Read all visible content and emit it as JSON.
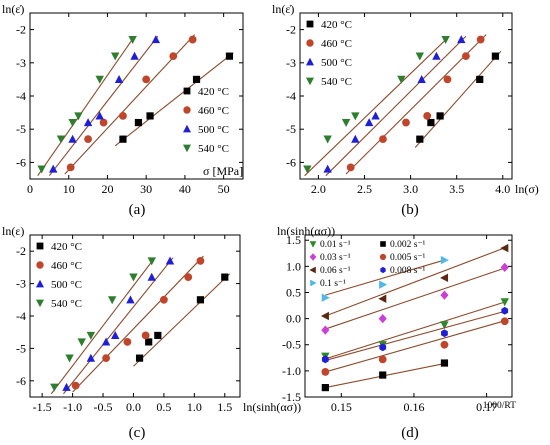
{
  "colors": {
    "c420": "#000000",
    "c460": "#c0462b",
    "c500": "#1f1fd6",
    "c540": "#2f7d2f",
    "fit": "#8b4a2b",
    "s001": "#2a8a2a",
    "s003": "#cc3fd6",
    "s006": "#5a2a10",
    "s01": "#4fb8e8",
    "s0002": "#000000",
    "s0005": "#c0462b",
    "s0008": "#1f1fd6"
  },
  "chart_data": [
    {
      "id": "a",
      "type": "scatter",
      "panel_label": "(a)",
      "xlabel": "σ [MPa]",
      "ylabel": "ln(ε̇)",
      "xlim": [
        0,
        55
      ],
      "ylim": [
        -6.5,
        -1.5
      ],
      "xticks": [
        "0",
        "10",
        "20",
        "30",
        "40",
        "50"
      ],
      "xtick_values": [
        0,
        10,
        20,
        30,
        40,
        50
      ],
      "yticks": [
        "-2",
        "-3",
        "-4",
        "-5",
        "-6"
      ],
      "ytick_values": [
        -2,
        -3,
        -4,
        -5,
        -6
      ],
      "legend_position": "bottom-right",
      "series": [
        {
          "name": "420 °C",
          "marker": "square",
          "color": "c420",
          "x": [
            24,
            28,
            31,
            43,
            51.5
          ],
          "y": [
            -5.3,
            -4.8,
            -4.6,
            -3.5,
            -2.8
          ],
          "fit": [
            [
              22,
              -5.5
            ],
            [
              52.5,
              -2.7
            ]
          ]
        },
        {
          "name": "460 °C",
          "marker": "circle",
          "color": "c460",
          "x": [
            10.5,
            15,
            19,
            24,
            30,
            37,
            42
          ],
          "y": [
            -6.15,
            -5.3,
            -4.8,
            -4.6,
            -3.5,
            -2.8,
            -2.3
          ],
          "fit": [
            [
              9,
              -6.35
            ],
            [
              42.5,
              -2.15
            ]
          ]
        },
        {
          "name": "500 °C",
          "marker": "triangle-up",
          "color": "c500",
          "x": [
            6,
            11,
            15,
            18,
            23,
            27,
            32.5
          ],
          "y": [
            -6.2,
            -5.3,
            -4.8,
            -4.6,
            -3.5,
            -2.8,
            -2.3
          ],
          "fit": [
            [
              5,
              -6.4
            ],
            [
              33,
              -2.2
            ]
          ]
        },
        {
          "name": "540 °C",
          "marker": "triangle-down",
          "color": "c540",
          "x": [
            3,
            8,
            11,
            12.5,
            18,
            22,
            26.5
          ],
          "y": [
            -6.2,
            -5.3,
            -4.8,
            -4.6,
            -3.5,
            -2.8,
            -2.3
          ],
          "fit": [
            [
              2,
              -6.4
            ],
            [
              27,
              -2.2
            ]
          ]
        }
      ]
    },
    {
      "id": "b",
      "type": "scatter",
      "panel_label": "(b)",
      "xlabel": "ln(σ)",
      "ylabel": "ln(ε̇)",
      "xlim": [
        1.8,
        4.1
      ],
      "ylim": [
        -6.5,
        -1.5
      ],
      "xticks": [
        "2.0",
        "2.5",
        "3.0",
        "3.5",
        "4.0"
      ],
      "xtick_values": [
        2.0,
        2.5,
        3.0,
        3.5,
        4.0
      ],
      "yticks": [
        "-2",
        "-3",
        "-4",
        "-5",
        "-6"
      ],
      "ytick_values": [
        -2,
        -3,
        -4,
        -5,
        -6
      ],
      "legend_position": "top-left",
      "series": [
        {
          "name": "420 °C",
          "marker": "square",
          "color": "c420",
          "x": [
            3.1,
            3.22,
            3.32,
            3.75,
            3.92
          ],
          "y": [
            -5.3,
            -4.8,
            -4.6,
            -3.5,
            -2.8
          ],
          "fit": [
            [
              3.05,
              -5.55
            ],
            [
              3.98,
              -2.65
            ]
          ]
        },
        {
          "name": "460 °C",
          "marker": "circle",
          "color": "c460",
          "x": [
            2.35,
            2.7,
            2.95,
            3.18,
            3.4,
            3.6,
            3.76
          ],
          "y": [
            -6.15,
            -5.3,
            -4.8,
            -4.6,
            -3.5,
            -2.8,
            -2.3
          ],
          "fit": [
            [
              2.3,
              -6.35
            ],
            [
              3.82,
              -2.15
            ]
          ]
        },
        {
          "name": "500 °C",
          "marker": "triangle-up",
          "color": "c500",
          "x": [
            2.1,
            2.4,
            2.55,
            2.62,
            3.12,
            3.28,
            3.55
          ],
          "y": [
            -6.2,
            -5.3,
            -4.8,
            -4.6,
            -3.5,
            -2.8,
            -2.3
          ],
          "fit": [
            [
              2.08,
              -6.4
            ],
            [
              3.6,
              -2.2
            ]
          ]
        },
        {
          "name": "540 °C",
          "marker": "triangle-down",
          "color": "c540",
          "x": [
            1.88,
            2.1,
            2.3,
            2.4,
            2.9,
            3.1,
            3.38
          ],
          "y": [
            -6.2,
            -5.3,
            -4.8,
            -4.6,
            -3.5,
            -2.8,
            -2.3
          ],
          "fit": [
            [
              1.85,
              -6.4
            ],
            [
              3.42,
              -2.2
            ]
          ]
        }
      ]
    },
    {
      "id": "c",
      "type": "scatter",
      "panel_label": "(c)",
      "xlabel": "ln(sinh(ασ))",
      "ylabel": "ln(ε)",
      "xlim": [
        -1.7,
        1.75
      ],
      "ylim": [
        -6.5,
        -1.5
      ],
      "xticks": [
        "-1.5",
        "-1.0",
        "-0.5",
        "0.0",
        "0.5",
        "1.0",
        "1.5"
      ],
      "xtick_values": [
        -1.5,
        -1.0,
        -0.5,
        0.0,
        0.5,
        1.0,
        1.5
      ],
      "yticks": [
        "-2",
        "-3",
        "-4",
        "-5",
        "-6"
      ],
      "ytick_values": [
        -2,
        -3,
        -4,
        -5,
        -6
      ],
      "legend_position": "top-left",
      "series": [
        {
          "name": "420 °C",
          "marker": "square",
          "color": "c420",
          "x": [
            0.1,
            0.25,
            0.4,
            1.1,
            1.5
          ],
          "y": [
            -5.3,
            -4.8,
            -4.6,
            -3.5,
            -2.8
          ],
          "fit": [
            [
              0.0,
              -5.55
            ],
            [
              1.58,
              -2.7
            ]
          ]
        },
        {
          "name": "460 °C",
          "marker": "circle",
          "color": "c460",
          "x": [
            -0.95,
            -0.45,
            -0.1,
            0.2,
            0.5,
            0.9,
            1.1
          ],
          "y": [
            -6.15,
            -5.3,
            -4.8,
            -4.6,
            -3.5,
            -2.8,
            -2.3
          ],
          "fit": [
            [
              -1.0,
              -6.35
            ],
            [
              1.15,
              -2.15
            ]
          ]
        },
        {
          "name": "500 °C",
          "marker": "triangle-up",
          "color": "c500",
          "x": [
            -1.1,
            -0.7,
            -0.45,
            -0.3,
            -0.05,
            0.3,
            0.6
          ],
          "y": [
            -6.2,
            -5.3,
            -4.8,
            -4.6,
            -3.5,
            -2.8,
            -2.3
          ],
          "fit": [
            [
              -1.15,
              -6.4
            ],
            [
              0.65,
              -2.2
            ]
          ]
        },
        {
          "name": "540 °C",
          "marker": "triangle-down",
          "color": "c540",
          "x": [
            -1.3,
            -1.05,
            -0.85,
            -0.7,
            -0.35,
            0.0,
            0.3
          ],
          "y": [
            -6.2,
            -5.3,
            -4.8,
            -4.6,
            -3.5,
            -2.8,
            -2.3
          ],
          "fit": [
            [
              -1.35,
              -6.4
            ],
            [
              0.35,
              -2.2
            ]
          ]
        }
      ]
    },
    {
      "id": "d",
      "type": "scatter",
      "panel_label": "(d)",
      "xlabel": "1000/RT",
      "ylabel": "ln(sinh(ασ))",
      "xlim": [
        0.145,
        0.1735
      ],
      "ylim": [
        -1.5,
        1.6
      ],
      "xticks": [
        "0.15",
        "0.16",
        "0.17"
      ],
      "xtick_values": [
        0.15,
        0.16,
        0.17
      ],
      "yticks": [
        "1.5",
        "1.0",
        "0.5",
        "0.0",
        "-0.5",
        "-1.0",
        "-1.5"
      ],
      "ytick_values": [
        1.5,
        1.0,
        0.5,
        0.0,
        -0.5,
        -1.0,
        -1.5
      ],
      "legend_position": "top-left",
      "x_points": [
        0.1478,
        0.1557,
        0.1642,
        0.1725
      ],
      "series": [
        {
          "name": "0.01 s⁻¹",
          "marker": "triangle-down",
          "color": "s001",
          "y": [
            -0.72,
            -0.5,
            -0.12,
            0.32
          ],
          "fit": [
            [
              0.1478,
              -0.77
            ],
            [
              0.1728,
              0.33
            ]
          ]
        },
        {
          "name": "0.03 s⁻¹",
          "marker": "diamond",
          "color": "s003",
          "y": [
            -0.22,
            0.0,
            0.45,
            0.98
          ],
          "fit": [
            [
              0.1478,
              -0.2
            ],
            [
              0.1728,
              0.98
            ]
          ]
        },
        {
          "name": "0.06 s⁻¹",
          "marker": "triangle-left",
          "color": "s006",
          "y": [
            0.05,
            0.38,
            0.78,
            1.35
          ],
          "fit": [
            [
              0.1478,
              0.05
            ],
            [
              0.1728,
              1.37
            ]
          ]
        },
        {
          "name": "0.1 s⁻¹",
          "marker": "triangle-right",
          "color": "s01",
          "y": [
            0.4,
            0.65,
            1.12,
            null
          ],
          "fit": [
            [
              0.1478,
              0.45
            ],
            [
              0.1642,
              1.12
            ]
          ]
        },
        {
          "name": "0.002 s⁻¹",
          "marker": "square",
          "color": "s0002",
          "y": [
            -1.32,
            -1.08,
            -0.85,
            null
          ],
          "fit": [
            [
              0.1478,
              -1.32
            ],
            [
              0.1642,
              -0.86
            ]
          ]
        },
        {
          "name": "0.005 s⁻¹",
          "marker": "circle",
          "color": "s0005",
          "y": [
            -1.02,
            -0.78,
            -0.5,
            -0.05
          ],
          "fit": [
            [
              0.1478,
              -1.02
            ],
            [
              0.1728,
              -0.03
            ]
          ]
        },
        {
          "name": "0.008 s⁻¹",
          "marker": "hexagon",
          "color": "s0008",
          "y": [
            -0.78,
            -0.55,
            -0.28,
            0.15
          ],
          "fit": [
            [
              0.1478,
              -0.8
            ],
            [
              0.1728,
              0.15
            ]
          ]
        }
      ]
    }
  ]
}
